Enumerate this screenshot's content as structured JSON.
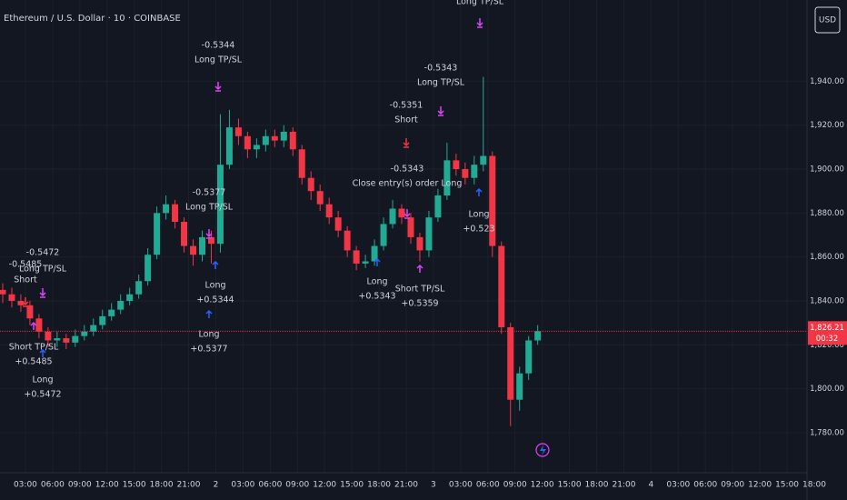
{
  "chart_data": {
    "type": "candlestick",
    "title": "Ethereum / U.S. Dollar · 10 · COINBASE",
    "currency": "USD",
    "up_color": "#22ab94",
    "down_color": "#f23645",
    "grid": true,
    "x": [
      0.5,
      1.5,
      2.5,
      3.5,
      4.5,
      5.5,
      6.5,
      7.5,
      8.5,
      9.5,
      10.5,
      11.5,
      12.5,
      13.5,
      14.5,
      15.5,
      16.5,
      17.5,
      18.5,
      19.5,
      20.5,
      21.5,
      22.5,
      23.5,
      24.5,
      25.5,
      26.5,
      27.5,
      28.5,
      29.5,
      30.5,
      31.5,
      32.5,
      33.5,
      34.5,
      35.5,
      36.5,
      37.5,
      38.5,
      39.5,
      40.5,
      41.5,
      42.5,
      43.5,
      44.5,
      45.5,
      46.5,
      47.5,
      48.5,
      49.5,
      50.5,
      51.5,
      52.5,
      53.5,
      54.5,
      55.5,
      56.5,
      57.5,
      58.5,
      59.5
    ],
    "open": [
      1845,
      1843,
      1840,
      1838,
      1832,
      1826,
      1822,
      1823,
      1821,
      1824,
      1826,
      1829,
      1833,
      1836,
      1840,
      1843,
      1849,
      1861,
      1880,
      1884,
      1876,
      1865,
      1861,
      1869,
      1866,
      1902,
      1919,
      1915,
      1909,
      1911,
      1915,
      1913,
      1917,
      1909,
      1896,
      1890,
      1884,
      1878,
      1872,
      1863,
      1857,
      1858,
      1865,
      1875,
      1882,
      1878,
      1869,
      1863,
      1878,
      1888,
      1904,
      1900,
      1896,
      1902,
      1906,
      1865,
      1828,
      1795,
      1807,
      1822
    ],
    "high": [
      1848,
      1846,
      1843,
      1840,
      1834,
      1828,
      1826,
      1825,
      1827,
      1829,
      1832,
      1836,
      1839,
      1843,
      1846,
      1852,
      1864,
      1883,
      1888,
      1886,
      1878,
      1868,
      1872,
      1872,
      1925,
      1927,
      1923,
      1917,
      1914,
      1918,
      1918,
      1920,
      1919,
      1911,
      1899,
      1893,
      1887,
      1881,
      1874,
      1865,
      1861,
      1868,
      1878,
      1886,
      1884,
      1880,
      1871,
      1881,
      1891,
      1912,
      1907,
      1903,
      1906,
      1942,
      1908,
      1867,
      1830,
      1810,
      1824,
      1829
    ],
    "low": [
      1839,
      1837,
      1835,
      1829,
      1823,
      1819,
      1819,
      1818,
      1819,
      1822,
      1824,
      1827,
      1831,
      1834,
      1838,
      1841,
      1847,
      1859,
      1877,
      1873,
      1862,
      1856,
      1858,
      1857,
      1862,
      1900,
      1911,
      1905,
      1905,
      1908,
      1910,
      1910,
      1906,
      1893,
      1886,
      1881,
      1875,
      1869,
      1860,
      1854,
      1855,
      1856,
      1863,
      1873,
      1875,
      1866,
      1858,
      1860,
      1876,
      1886,
      1897,
      1893,
      1893,
      1899,
      1860,
      1825,
      1783,
      1790,
      1804,
      1820
    ],
    "close": [
      1843,
      1840,
      1838,
      1832,
      1826,
      1822,
      1823,
      1821,
      1824,
      1826,
      1829,
      1833,
      1836,
      1840,
      1843,
      1849,
      1861,
      1880,
      1884,
      1876,
      1865,
      1861,
      1869,
      1866,
      1902,
      1919,
      1915,
      1909,
      1911,
      1915,
      1913,
      1917,
      1909,
      1896,
      1890,
      1884,
      1878,
      1872,
      1863,
      1857,
      1858,
      1865,
      1875,
      1882,
      1878,
      1869,
      1863,
      1878,
      1888,
      1904,
      1900,
      1896,
      1902,
      1906,
      1865,
      1828,
      1795,
      1807,
      1822,
      1826.21
    ],
    "xlim": [
      0.2,
      89.2
    ],
    "xticks": [
      {
        "value": 3,
        "label": "03:00"
      },
      {
        "value": 6,
        "label": "06:00"
      },
      {
        "value": 9,
        "label": "09:00"
      },
      {
        "value": 12,
        "label": "12:00"
      },
      {
        "value": 15,
        "label": "15:00"
      },
      {
        "value": 18,
        "label": "18:00"
      },
      {
        "value": 21,
        "label": "21:00"
      },
      {
        "value": 24,
        "label": "2"
      },
      {
        "value": 27,
        "label": "03:00"
      },
      {
        "value": 30,
        "label": "06:00"
      },
      {
        "value": 33,
        "label": "09:00"
      },
      {
        "value": 36,
        "label": "12:00"
      },
      {
        "value": 39,
        "label": "15:00"
      },
      {
        "value": 42,
        "label": "18:00"
      },
      {
        "value": 45,
        "label": "21:00"
      },
      {
        "value": 48,
        "label": "3"
      },
      {
        "value": 51,
        "label": "03:00"
      },
      {
        "value": 54,
        "label": "06:00"
      },
      {
        "value": 57,
        "label": "09:00"
      },
      {
        "value": 60,
        "label": "12:00"
      },
      {
        "value": 63,
        "label": "15:00"
      },
      {
        "value": 66,
        "label": "18:00"
      },
      {
        "value": 69,
        "label": "21:00"
      },
      {
        "value": 72,
        "label": "4"
      },
      {
        "value": 75,
        "label": "03:00"
      },
      {
        "value": 78,
        "label": "06:00"
      },
      {
        "value": 81,
        "label": "09:00"
      },
      {
        "value": 84,
        "label": "12:00"
      },
      {
        "value": 87,
        "label": "15:00"
      },
      {
        "value": 90,
        "label": "18:00"
      }
    ],
    "ylim": [
      1763,
      1977
    ],
    "yticks": [
      {
        "value": 1780,
        "label": "1,780.00"
      },
      {
        "value": 1800,
        "label": "1,800.00"
      },
      {
        "value": 1820,
        "label": "1,820.00"
      },
      {
        "value": 1840,
        "label": "1,840.00"
      },
      {
        "value": 1860,
        "label": "1,860.00"
      },
      {
        "value": 1880,
        "label": "1,880.00"
      },
      {
        "value": 1900,
        "label": "1,900.00"
      },
      {
        "value": 1920,
        "label": "1,920.00"
      },
      {
        "value": 1940,
        "label": "1,940.00"
      }
    ],
    "price": {
      "value": 1826.21,
      "label": "1,826.21"
    },
    "countdown": "00:32",
    "annotations": [
      [
        "Long TP/SL"
      ],
      [
        "-0.5344",
        "Long TP/SL"
      ],
      [
        "-0.5343",
        "Long TP/SL"
      ],
      [
        "-0.5351",
        "Short"
      ],
      [
        "-0.5343",
        "Close entry(s) order Long"
      ],
      [
        "-0.5377",
        "Long TP/SL"
      ],
      [
        "Long",
        "+0.523"
      ],
      [
        "-0.5472"
      ],
      [
        "-0.5485"
      ],
      [
        "Long TP/SL"
      ],
      [
        "Short"
      ],
      [
        "Long",
        "+0.5344"
      ],
      [
        "Long",
        "+0.5343"
      ],
      [
        "Short TP/SL",
        "+0.5359"
      ],
      [
        "Long",
        "+0.5377"
      ],
      [
        "Short TP/SL",
        "+0.5485"
      ],
      [
        "Long",
        "+0.5472"
      ]
    ]
  }
}
